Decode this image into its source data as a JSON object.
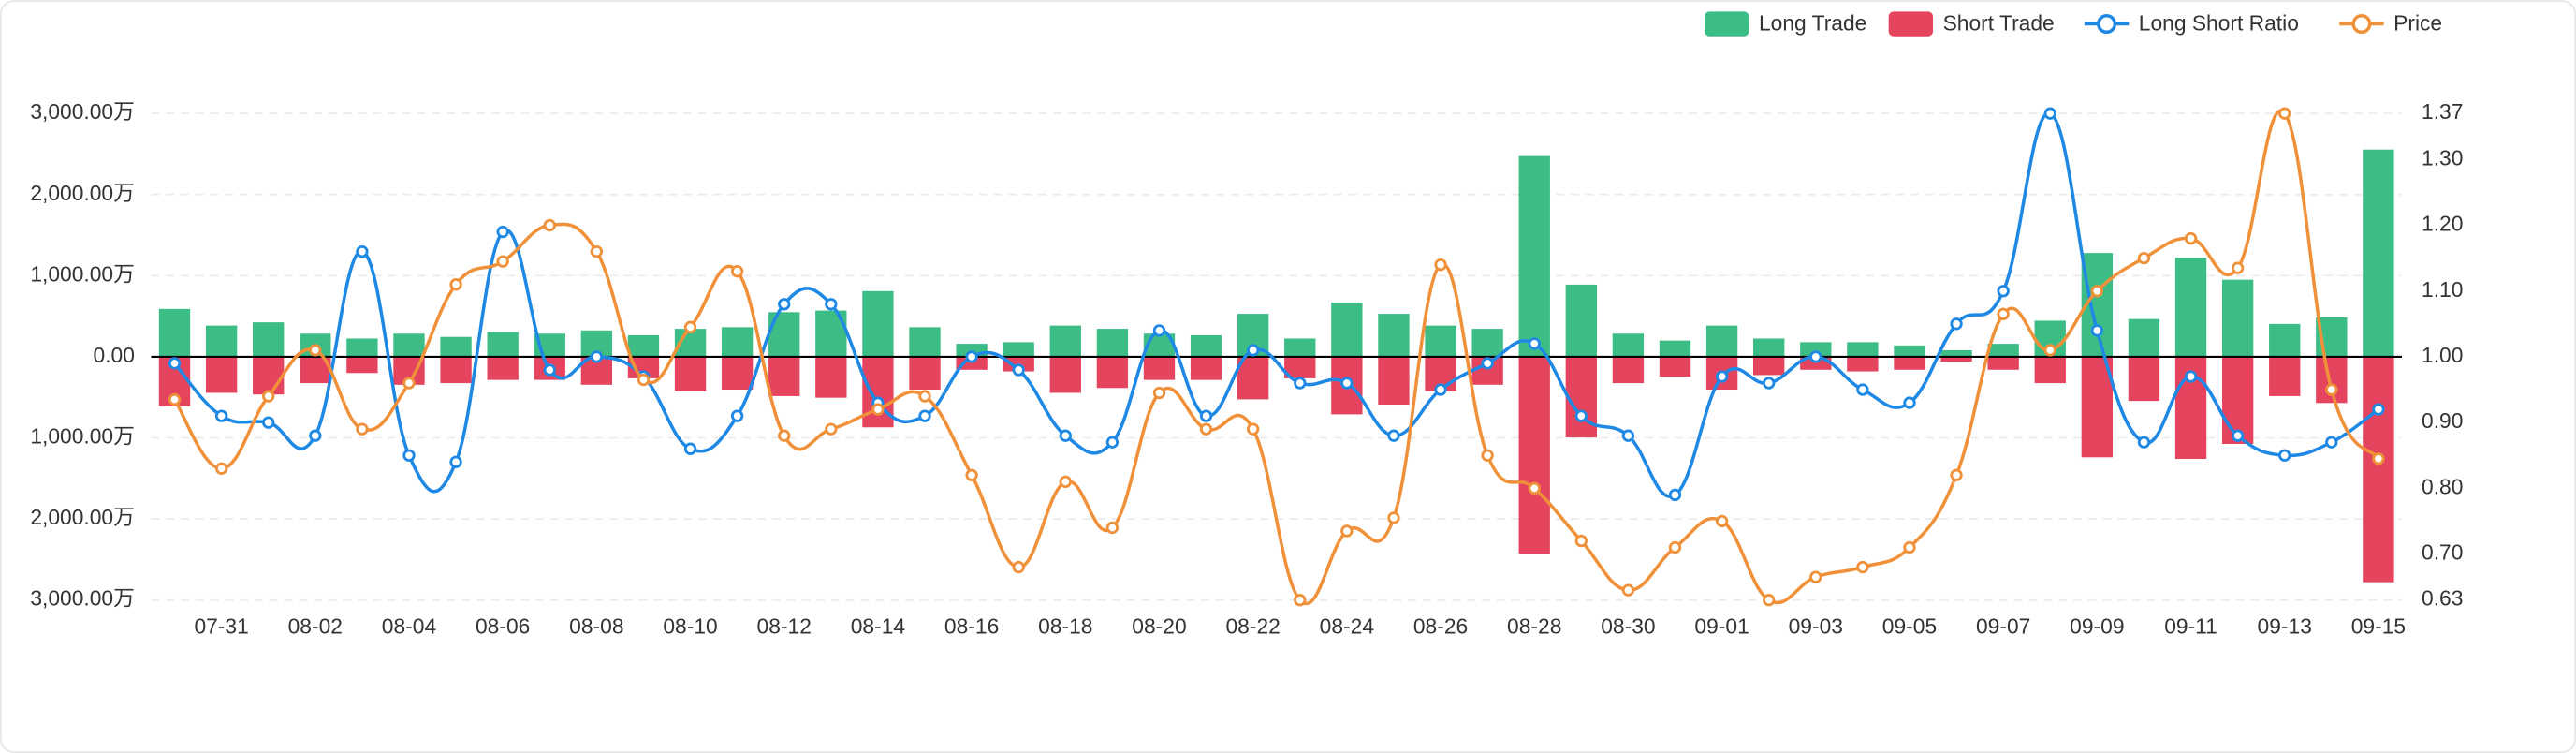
{
  "chart_data": {
    "type": "bar-line",
    "categories": [
      null,
      "07-31",
      null,
      "08-02",
      null,
      "08-04",
      null,
      "08-06",
      null,
      "08-08",
      null,
      "08-10",
      null,
      "08-12",
      null,
      "08-14",
      null,
      "08-16",
      null,
      "08-18",
      null,
      "08-20",
      null,
      "08-22",
      null,
      "08-24",
      null,
      "08-26",
      null,
      "08-28",
      null,
      "08-30",
      null,
      "09-01",
      null,
      "09-03",
      null,
      "09-05",
      null,
      "09-07",
      null,
      "09-09",
      null,
      "09-11",
      null,
      "09-13",
      null,
      "09-15"
    ],
    "series": [
      {
        "name": "Long Trade",
        "type": "bar",
        "color": "#3dbd86",
        "values": [
          590,
          385,
          425,
          285,
          225,
          285,
          245,
          305,
          285,
          325,
          265,
          345,
          365,
          550,
          570,
          810,
          365,
          160,
          180,
          385,
          345,
          285,
          265,
          530,
          225,
          670,
          530,
          385,
          345,
          2475,
          890,
          285,
          200,
          385,
          225,
          180,
          180,
          140,
          80,
          160,
          445,
          1280,
          465,
          1220,
          950,
          405,
          485,
          2555
        ]
      },
      {
        "name": "Short Trade",
        "type": "bar",
        "color": "#e5445e",
        "values": [
          -610,
          -445,
          -465,
          -325,
          -200,
          -345,
          -325,
          -285,
          -285,
          -345,
          -265,
          -425,
          -405,
          -485,
          -505,
          -870,
          -405,
          -160,
          -180,
          -445,
          -385,
          -285,
          -285,
          -525,
          -265,
          -710,
          -590,
          -425,
          -345,
          -2430,
          -995,
          -325,
          -245,
          -405,
          -225,
          -160,
          -180,
          -160,
          -60,
          -160,
          -325,
          -1240,
          -545,
          -1260,
          -1075,
          -485,
          -570,
          -2780
        ]
      },
      {
        "name": "Long Short Ratio",
        "type": "line",
        "axis": "y2",
        "color": "#1e88e5",
        "values": [
          0.99,
          0.91,
          0.9,
          0.88,
          1.16,
          0.85,
          0.84,
          1.19,
          0.98,
          1.0,
          0.97,
          0.86,
          0.91,
          1.08,
          1.08,
          0.93,
          0.91,
          1.0,
          0.98,
          0.88,
          0.87,
          1.04,
          0.91,
          1.01,
          0.96,
          0.96,
          0.88,
          0.95,
          0.99,
          1.02,
          0.91,
          0.88,
          0.79,
          0.97,
          0.96,
          1.0,
          0.95,
          0.93,
          1.05,
          1.1,
          1.37,
          1.04,
          0.87,
          0.97,
          0.88,
          0.85,
          0.87,
          0.92
        ]
      },
      {
        "name": "Price",
        "type": "line",
        "axis": "y2",
        "color": "#f0913a",
        "values": [
          0.935,
          0.83,
          0.94,
          1.01,
          0.89,
          0.96,
          1.11,
          1.145,
          1.2,
          1.16,
          0.965,
          1.045,
          1.13,
          0.88,
          0.89,
          0.92,
          0.94,
          0.82,
          0.68,
          0.81,
          0.74,
          0.945,
          0.89,
          0.89,
          0.63,
          0.735,
          0.755,
          1.14,
          0.85,
          0.8,
          0.72,
          0.645,
          0.71,
          0.75,
          0.63,
          0.665,
          0.68,
          0.71,
          0.82,
          1.065,
          1.01,
          1.1,
          1.15,
          1.18,
          1.135,
          1.37,
          0.95,
          0.845
        ]
      }
    ],
    "ylim": [
      -3000,
      3000
    ],
    "yticks": [
      {
        "value": 3000,
        "label": "3,000.00万"
      },
      {
        "value": 2000,
        "label": "2,000.00万"
      },
      {
        "value": 1000,
        "label": "1,000.00万"
      },
      {
        "value": 0,
        "label": "0.00"
      },
      {
        "value": -1000,
        "label": "1,000.00万"
      },
      {
        "value": -2000,
        "label": "2,000.00万"
      },
      {
        "value": -3000,
        "label": "3,000.00万"
      }
    ],
    "y2lim": [
      0.63,
      1.37
    ],
    "y2ticks": [
      {
        "value": 1.37,
        "label": "1.37"
      },
      {
        "value": 1.3,
        "label": "1.30"
      },
      {
        "value": 1.2,
        "label": "1.20"
      },
      {
        "value": 1.1,
        "label": "1.10"
      },
      {
        "value": 1.0,
        "label": "1.00"
      },
      {
        "value": 0.9,
        "label": "0.90"
      },
      {
        "value": 0.8,
        "label": "0.80"
      },
      {
        "value": 0.7,
        "label": "0.70"
      },
      {
        "value": 0.63,
        "label": "0.63"
      }
    ],
    "grid": true,
    "legend": "top-right"
  }
}
